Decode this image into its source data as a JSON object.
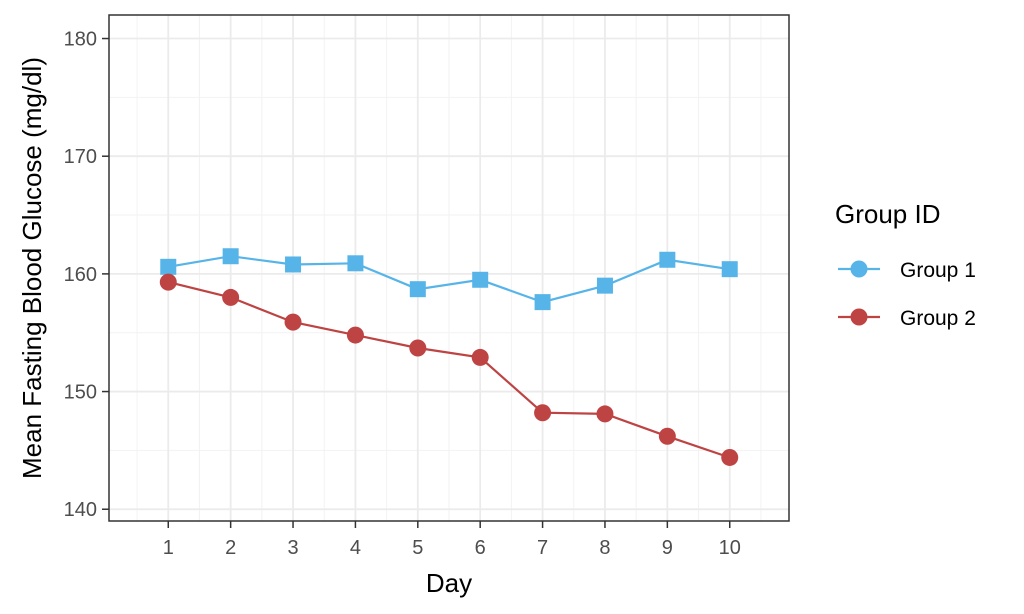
{
  "chart_data": {
    "type": "line",
    "title": "",
    "xlabel": "Day",
    "ylabel": "Mean Fasting Blood Glucose (mg/dl)",
    "x": [
      1,
      2,
      3,
      4,
      5,
      6,
      7,
      8,
      9,
      10
    ],
    "xlim": [
      0.05,
      10.95
    ],
    "ylim": [
      139,
      182
    ],
    "x_ticks": [
      "1",
      "2",
      "3",
      "4",
      "5",
      "6",
      "7",
      "8",
      "9",
      "10"
    ],
    "y_ticks": [
      140,
      150,
      160,
      170,
      180
    ],
    "grid": true,
    "legend": {
      "title": "Group ID",
      "position": "right"
    },
    "series": [
      {
        "name": "Group 1",
        "color": "#56B4E9",
        "marker": "square",
        "values": [
          160.6,
          161.5,
          160.8,
          160.9,
          158.7,
          159.5,
          157.6,
          159.0,
          161.2,
          160.4
        ]
      },
      {
        "name": "Group 2",
        "color": "#BE4343",
        "marker": "circle",
        "values": [
          159.3,
          158.0,
          155.9,
          154.8,
          153.7,
          152.9,
          148.2,
          148.1,
          146.2,
          144.4
        ]
      }
    ]
  }
}
